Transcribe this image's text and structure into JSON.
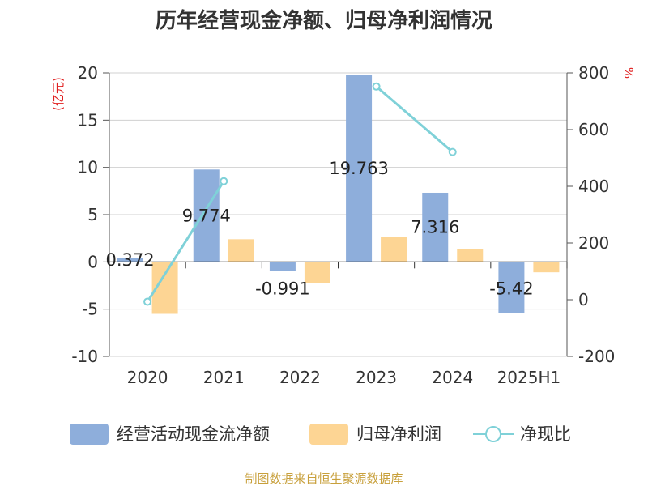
{
  "chart_data": {
    "type": "bar",
    "title": "历年经营现金净额、归母净利润情况",
    "categories": [
      "2020",
      "2021",
      "2022",
      "2023",
      "2024",
      "2025H1"
    ],
    "left_axis": {
      "unit_label": "(亿元)",
      "ylim": [
        -10,
        20
      ],
      "ticks": [
        "-10",
        "-5",
        "0",
        "5",
        "10",
        "15",
        "20"
      ]
    },
    "right_axis": {
      "unit_label": "%",
      "ylim": [
        -200,
        800
      ],
      "ticks": [
        "-200",
        "0",
        "200",
        "400",
        "600",
        "800"
      ]
    },
    "series": [
      {
        "name": "经营活动现金流净额",
        "type": "bar",
        "axis": "left",
        "color": "#8eaedb",
        "values": [
          0.372,
          9.774,
          -0.991,
          19.763,
          7.316,
          -5.42
        ],
        "labels": [
          "0.372",
          "9.774",
          "-0.991",
          "19.763",
          "7.316",
          "-5.42"
        ]
      },
      {
        "name": "归母净利润",
        "type": "bar",
        "axis": "left",
        "color": "#fdd594",
        "values": [
          -5.5,
          2.4,
          -2.2,
          2.6,
          1.4,
          -1.1
        ]
      },
      {
        "name": "净现比",
        "type": "line",
        "axis": "right",
        "color": "#7fd1d8",
        "values": [
          -7,
          418,
          null,
          752,
          521,
          null
        ]
      }
    ],
    "grid": true,
    "legend_position": "bottom"
  },
  "source": "制图数据来自恒生聚源数据库"
}
